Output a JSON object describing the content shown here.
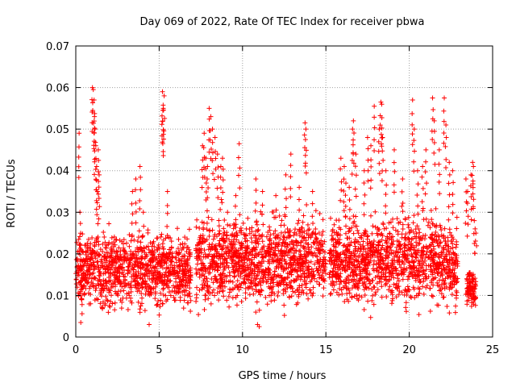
{
  "chart_data": {
    "type": "scatter",
    "title": "Day 069 of 2022, Rate Of TEC Index for receiver pbwa",
    "xlabel": "GPS time / hours",
    "ylabel": "ROTI / TECUs",
    "xlim": [
      0,
      25
    ],
    "ylim": [
      0,
      0.07
    ],
    "x_ticks": [
      "0",
      "5",
      "10",
      "15",
      "20",
      "25"
    ],
    "y_ticks": [
      "0",
      "0.01",
      "0.02",
      "0.03",
      "0.04",
      "0.05",
      "0.06",
      "0.07"
    ],
    "grid": true,
    "marker": "+",
    "color": "#ff0000",
    "density_profile": [
      {
        "x_start": 0.0,
        "x_end": 6.9,
        "y_low": 0.004,
        "y_high": 0.026
      },
      {
        "x_start": 7.2,
        "x_end": 15.0,
        "y_low": 0.004,
        "y_high": 0.03
      },
      {
        "x_start": 15.2,
        "x_end": 22.9,
        "y_low": 0.004,
        "y_high": 0.03
      },
      {
        "x_start": 23.4,
        "x_end": 24.0,
        "y_low": 0.006,
        "y_high": 0.016
      }
    ],
    "outliers": [
      {
        "x": 0.2,
        "y": 0.049
      },
      {
        "x": 0.25,
        "y": 0.03
      },
      {
        "x": 1.0,
        "y": 0.06
      },
      {
        "x": 1.05,
        "y": 0.0595
      },
      {
        "x": 1.1,
        "y": 0.057
      },
      {
        "x": 1.12,
        "y": 0.053
      },
      {
        "x": 1.15,
        "y": 0.05
      },
      {
        "x": 1.2,
        "y": 0.046
      },
      {
        "x": 1.25,
        "y": 0.041
      },
      {
        "x": 1.3,
        "y": 0.035
      },
      {
        "x": 1.35,
        "y": 0.045
      },
      {
        "x": 1.4,
        "y": 0.039
      },
      {
        "x": 3.4,
        "y": 0.035
      },
      {
        "x": 3.6,
        "y": 0.038
      },
      {
        "x": 3.85,
        "y": 0.041
      },
      {
        "x": 4.05,
        "y": 0.03
      },
      {
        "x": 5.2,
        "y": 0.059
      },
      {
        "x": 5.3,
        "y": 0.058
      },
      {
        "x": 5.25,
        "y": 0.055
      },
      {
        "x": 5.22,
        "y": 0.0545
      },
      {
        "x": 5.5,
        "y": 0.035
      },
      {
        "x": 7.6,
        "y": 0.046
      },
      {
        "x": 7.7,
        "y": 0.049
      },
      {
        "x": 7.8,
        "y": 0.043
      },
      {
        "x": 7.9,
        "y": 0.041
      },
      {
        "x": 8.0,
        "y": 0.055
      },
      {
        "x": 8.1,
        "y": 0.053
      },
      {
        "x": 8.2,
        "y": 0.05
      },
      {
        "x": 8.35,
        "y": 0.048
      },
      {
        "x": 8.5,
        "y": 0.044
      },
      {
        "x": 8.7,
        "y": 0.041
      },
      {
        "x": 8.8,
        "y": 0.043
      },
      {
        "x": 9.1,
        "y": 0.03
      },
      {
        "x": 9.6,
        "y": 0.034
      },
      {
        "x": 9.8,
        "y": 0.0465
      },
      {
        "x": 10.8,
        "y": 0.038
      },
      {
        "x": 11.2,
        "y": 0.035
      },
      {
        "x": 12.0,
        "y": 0.034
      },
      {
        "x": 12.6,
        "y": 0.039
      },
      {
        "x": 12.9,
        "y": 0.044
      },
      {
        "x": 13.4,
        "y": 0.036
      },
      {
        "x": 13.75,
        "y": 0.0515
      },
      {
        "x": 13.8,
        "y": 0.05
      },
      {
        "x": 14.2,
        "y": 0.035
      },
      {
        "x": 15.9,
        "y": 0.043
      },
      {
        "x": 16.1,
        "y": 0.041
      },
      {
        "x": 16.2,
        "y": 0.037
      },
      {
        "x": 16.4,
        "y": 0.036
      },
      {
        "x": 16.6,
        "y": 0.05
      },
      {
        "x": 16.65,
        "y": 0.052
      },
      {
        "x": 16.8,
        "y": 0.044
      },
      {
        "x": 17.3,
        "y": 0.04
      },
      {
        "x": 17.5,
        "y": 0.048
      },
      {
        "x": 17.7,
        "y": 0.046
      },
      {
        "x": 17.9,
        "y": 0.0555
      },
      {
        "x": 18.2,
        "y": 0.05
      },
      {
        "x": 18.3,
        "y": 0.0565
      },
      {
        "x": 18.35,
        "y": 0.056
      },
      {
        "x": 18.4,
        "y": 0.048
      },
      {
        "x": 18.6,
        "y": 0.04
      },
      {
        "x": 19.1,
        "y": 0.045
      },
      {
        "x": 19.6,
        "y": 0.038
      },
      {
        "x": 20.2,
        "y": 0.057
      },
      {
        "x": 20.3,
        "y": 0.05
      },
      {
        "x": 20.5,
        "y": 0.04
      },
      {
        "x": 20.8,
        "y": 0.041
      },
      {
        "x": 21.0,
        "y": 0.045
      },
      {
        "x": 21.4,
        "y": 0.0575
      },
      {
        "x": 21.5,
        "y": 0.052
      },
      {
        "x": 21.8,
        "y": 0.045
      },
      {
        "x": 22.1,
        "y": 0.0575
      },
      {
        "x": 22.2,
        "y": 0.051
      },
      {
        "x": 22.4,
        "y": 0.042
      },
      {
        "x": 22.6,
        "y": 0.04
      },
      {
        "x": 23.4,
        "y": 0.038
      },
      {
        "x": 23.5,
        "y": 0.035
      },
      {
        "x": 23.7,
        "y": 0.039
      },
      {
        "x": 23.8,
        "y": 0.042
      },
      {
        "x": 23.85,
        "y": 0.041
      },
      {
        "x": 23.9,
        "y": 0.028
      },
      {
        "x": 24.0,
        "y": 0.025
      },
      {
        "x": 23.95,
        "y": 0.026
      },
      {
        "x": 10.9,
        "y": 0.003
      },
      {
        "x": 11.0,
        "y": 0.0025
      },
      {
        "x": 4.4,
        "y": 0.003
      },
      {
        "x": 0.3,
        "y": 0.0035
      }
    ]
  }
}
